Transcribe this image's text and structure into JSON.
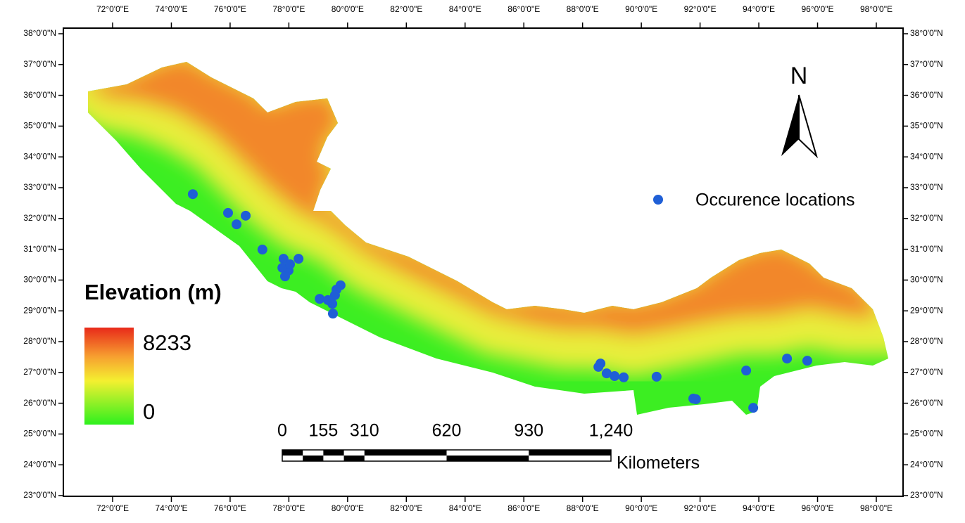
{
  "map": {
    "graticule": {
      "longitude_labels": [
        "72°0'0\"E",
        "74°0'0\"E",
        "76°0'0\"E",
        "78°0'0\"E",
        "80°0'0\"E",
        "82°0'0\"E",
        "84°0'0\"E",
        "86°0'0\"E",
        "88°0'0\"E",
        "90°0'0\"E",
        "92°0'0\"E",
        "94°0'0\"E",
        "96°0'0\"E",
        "98°0'0\"E"
      ],
      "latitude_labels": [
        "38°0'0\"N",
        "37°0'0\"N",
        "36°0'0\"N",
        "35°0'0\"N",
        "34°0'0\"N",
        "33°0'0\"N",
        "32°0'0\"N",
        "31°0'0\"N",
        "30°0'0\"N",
        "29°0'0\"N",
        "28°0'0\"N",
        "27°0'0\"N",
        "26°0'0\"N",
        "25°0'0\"N",
        "24°0'0\"N",
        "23°0'0\"N"
      ]
    },
    "points": [
      {
        "lon": 74.73,
        "lat": 32.79
      },
      {
        "lon": 75.93,
        "lat": 32.18
      },
      {
        "lon": 76.22,
        "lat": 31.81
      },
      {
        "lon": 76.53,
        "lat": 32.09
      },
      {
        "lon": 77.1,
        "lat": 30.99
      },
      {
        "lon": 77.82,
        "lat": 30.69
      },
      {
        "lon": 78.33,
        "lat": 30.69
      },
      {
        "lon": 77.78,
        "lat": 30.4
      },
      {
        "lon": 77.99,
        "lat": 30.31
      },
      {
        "lon": 78.04,
        "lat": 30.51
      },
      {
        "lon": 77.87,
        "lat": 30.12
      },
      {
        "lon": 79.76,
        "lat": 29.83
      },
      {
        "lon": 79.62,
        "lat": 29.69
      },
      {
        "lon": 79.57,
        "lat": 29.51
      },
      {
        "lon": 79.05,
        "lat": 29.39
      },
      {
        "lon": 79.33,
        "lat": 29.35
      },
      {
        "lon": 79.48,
        "lat": 29.23
      },
      {
        "lon": 79.5,
        "lat": 28.91
      },
      {
        "lon": 88.61,
        "lat": 27.29
      },
      {
        "lon": 88.54,
        "lat": 27.18
      },
      {
        "lon": 88.82,
        "lat": 26.97
      },
      {
        "lon": 89.09,
        "lat": 26.88
      },
      {
        "lon": 89.4,
        "lat": 26.84
      },
      {
        "lon": 90.52,
        "lat": 26.86
      },
      {
        "lon": 91.77,
        "lat": 26.15
      },
      {
        "lon": 91.86,
        "lat": 26.13
      },
      {
        "lon": 93.57,
        "lat": 27.06
      },
      {
        "lon": 93.81,
        "lat": 25.85
      },
      {
        "lon": 94.96,
        "lat": 27.45
      },
      {
        "lon": 95.65,
        "lat": 27.38
      }
    ]
  },
  "legend": {
    "elevation_title": "Elevation (m)",
    "elevation_max": 8233,
    "elevation_min": 0,
    "occurrence_label": "Occurence locations"
  },
  "north_arrow": "N",
  "scale_bar": {
    "ticks": [
      {
        "value": 0,
        "label": "0"
      },
      {
        "value": 155,
        "label": "155"
      },
      {
        "value": 310,
        "label": "310"
      },
      {
        "value": 620,
        "label": "620"
      },
      {
        "value": 930,
        "label": "930"
      },
      {
        "value": 1240,
        "label": "1,240"
      }
    ],
    "unit": "Kilometers"
  }
}
